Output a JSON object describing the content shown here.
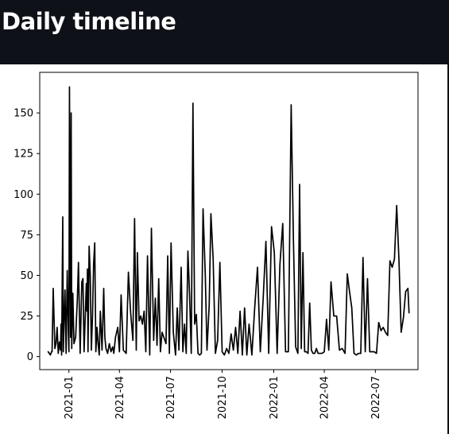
{
  "page": {
    "title": "Daily timeline"
  },
  "chart_data": {
    "type": "line",
    "title": "",
    "xlabel": "",
    "ylabel": "",
    "x_axis": "date",
    "xlim": [
      "2020-11-10",
      "2022-09-15"
    ],
    "ylim": [
      -8,
      175
    ],
    "yticks": [
      0,
      25,
      50,
      75,
      100,
      125,
      150
    ],
    "ytick_labels": [
      "0",
      "25",
      "50",
      "75",
      "100",
      "125",
      "150"
    ],
    "xticks": [
      "2021-01-01",
      "2021-04-01",
      "2021-07-01",
      "2021-10-01",
      "2022-01-01",
      "2022-04-01",
      "2022-07-01"
    ],
    "xtick_labels": [
      "2021-01",
      "2021-04",
      "2021-07",
      "2021-10",
      "2022-01",
      "2022-04",
      "2022-07"
    ],
    "grid": false,
    "legend": "none",
    "line_color": "#000000",
    "series": [
      {
        "x": [
          "2020-11-25",
          "2020-11-29",
          "2020-12-01",
          "2020-12-02",
          "2020-12-04",
          "2020-12-07",
          "2020-12-09",
          "2020-12-11",
          "2020-12-13",
          "2020-12-15",
          "2020-12-17",
          "2020-12-18",
          "2020-12-19",
          "2020-12-21",
          "2020-12-22",
          "2020-12-23",
          "2020-12-25",
          "2020-12-27",
          "2020-12-29",
          "2020-12-31",
          "2021-01-01",
          "2021-01-02",
          "2021-01-04",
          "2021-01-05",
          "2021-01-06",
          "2021-01-08",
          "2021-01-10",
          "2021-01-13",
          "2021-01-16",
          "2021-01-18",
          "2021-01-21",
          "2021-01-24",
          "2021-01-26",
          "2021-01-28",
          "2021-02-01",
          "2021-02-02",
          "2021-02-03",
          "2021-02-04",
          "2021-02-06",
          "2021-02-08",
          "2021-02-10",
          "2021-02-12",
          "2021-02-14",
          "2021-02-16",
          "2021-02-18",
          "2021-02-20",
          "2021-02-22",
          "2021-02-24",
          "2021-02-26",
          "2021-03-01",
          "2021-03-04",
          "2021-03-06",
          "2021-03-08",
          "2021-03-11",
          "2021-03-14",
          "2021-03-17",
          "2021-03-20",
          "2021-03-22",
          "2021-03-25",
          "2021-03-29",
          "2021-04-01",
          "2021-04-04",
          "2021-04-08",
          "2021-04-13",
          "2021-04-17",
          "2021-04-21",
          "2021-04-25",
          "2021-04-28",
          "2021-05-01",
          "2021-05-03",
          "2021-05-06",
          "2021-05-09",
          "2021-05-12",
          "2021-05-15",
          "2021-05-18",
          "2021-05-21",
          "2021-05-25",
          "2021-05-28",
          "2021-06-01",
          "2021-06-04",
          "2021-06-07",
          "2021-06-10",
          "2021-06-13",
          "2021-06-16",
          "2021-06-19",
          "2021-06-23",
          "2021-06-26",
          "2021-06-29",
          "2021-07-02",
          "2021-07-06",
          "2021-07-10",
          "2021-07-13",
          "2021-07-16",
          "2021-07-20",
          "2021-07-23",
          "2021-07-26",
          "2021-07-29",
          "2021-08-01",
          "2021-08-04",
          "2021-08-07",
          "2021-08-10",
          "2021-08-13",
          "2021-08-16",
          "2021-08-19",
          "2021-08-22",
          "2021-08-25",
          "2021-08-28",
          "2021-09-01",
          "2021-09-04",
          "2021-09-08",
          "2021-09-11",
          "2021-09-15",
          "2021-09-19",
          "2021-09-23",
          "2021-09-27",
          "2021-10-01",
          "2021-10-05",
          "2021-10-09",
          "2021-10-13",
          "2021-10-17",
          "2021-10-21",
          "2021-10-25",
          "2021-10-29",
          "2021-11-02",
          "2021-11-06",
          "2021-11-10",
          "2021-11-14",
          "2021-11-18",
          "2021-11-23",
          "2021-11-28",
          "2021-12-03",
          "2021-12-08",
          "2021-12-13",
          "2021-12-18",
          "2021-12-23",
          "2021-12-28",
          "2022-01-02",
          "2022-01-07",
          "2022-01-12",
          "2022-01-17",
          "2022-01-22",
          "2022-01-27",
          "2022-02-01",
          "2022-02-05",
          "2022-02-09",
          "2022-02-13",
          "2022-02-16",
          "2022-02-19",
          "2022-02-22",
          "2022-02-25",
          "2022-02-28",
          "2022-03-03",
          "2022-03-06",
          "2022-03-09",
          "2022-03-12",
          "2022-03-15",
          "2022-03-18",
          "2022-03-21",
          "2022-03-24",
          "2022-03-28",
          "2022-04-01",
          "2022-04-05",
          "2022-04-09",
          "2022-04-13",
          "2022-04-18",
          "2022-04-23",
          "2022-04-28",
          "2022-05-03",
          "2022-05-08",
          "2022-05-12",
          "2022-05-16",
          "2022-05-20",
          "2022-05-24",
          "2022-05-28",
          "2022-06-01",
          "2022-06-05",
          "2022-06-09",
          "2022-06-13",
          "2022-06-17",
          "2022-06-21",
          "2022-06-25",
          "2022-06-29",
          "2022-07-03",
          "2022-07-07",
          "2022-07-11",
          "2022-07-15",
          "2022-07-19",
          "2022-07-23",
          "2022-07-27",
          "2022-07-31",
          "2022-08-04",
          "2022-08-08",
          "2022-08-12",
          "2022-08-16",
          "2022-08-20",
          "2022-08-24",
          "2022-08-28",
          "2022-08-30"
        ],
        "y": [
          3,
          1,
          3,
          3,
          42,
          5,
          8,
          18,
          2,
          9,
          4,
          20,
          1,
          86,
          3,
          17,
          41,
          2,
          53,
          15,
          3,
          166,
          12,
          150,
          5,
          39,
          8,
          12,
          35,
          58,
          2,
          46,
          48,
          3,
          45,
          28,
          54,
          3,
          68,
          50,
          4,
          25,
          57,
          70,
          3,
          18,
          8,
          1,
          28,
          4,
          42,
          12,
          5,
          2,
          8,
          3,
          6,
          2,
          12,
          18,
          3,
          38,
          4,
          2,
          52,
          27,
          10,
          85,
          4,
          64,
          22,
          25,
          20,
          28,
          3,
          62,
          1,
          79,
          10,
          36,
          7,
          48,
          3,
          15,
          12,
          8,
          62,
          2,
          70,
          15,
          1,
          30,
          4,
          55,
          3,
          20,
          2,
          65,
          38,
          2,
          156,
          20,
          26,
          2,
          1,
          2,
          91,
          50,
          4,
          32,
          88,
          60,
          2,
          10,
          58,
          3,
          1,
          5,
          2,
          14,
          4,
          18,
          2,
          28,
          1,
          30,
          1,
          20,
          1,
          30,
          55,
          3,
          35,
          71,
          2,
          80,
          64,
          2,
          57,
          82,
          3,
          3,
          155,
          72,
          6,
          2,
          106,
          5,
          64,
          3,
          3,
          2,
          33,
          4,
          2,
          2,
          5,
          2,
          2,
          2,
          3,
          23,
          4,
          46,
          25,
          25,
          4,
          5,
          2,
          51,
          40,
          30,
          2,
          1,
          2,
          2,
          61,
          3,
          48,
          3,
          3,
          3,
          2,
          21,
          16,
          18,
          15,
          13,
          59,
          55,
          60,
          93,
          60,
          15,
          24,
          40,
          42,
          27
        ]
      }
    ]
  }
}
